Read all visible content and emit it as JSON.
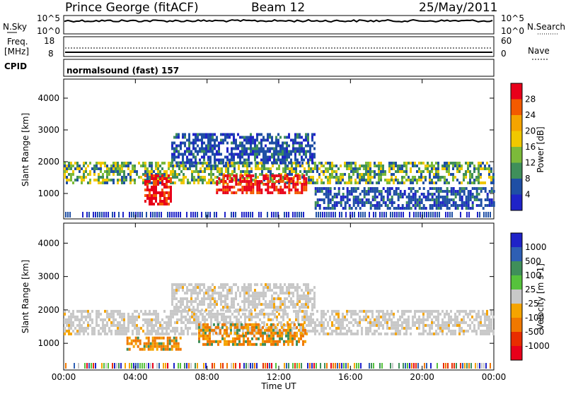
{
  "header": {
    "station": "Prince George (fitACF)",
    "beam": "Beam 12",
    "date": "25/May/2011"
  },
  "top_panels": {
    "nsky_label": "N.Sky",
    "nsearch_label": "N.Search",
    "noise_ticks_left": [
      "10^5",
      "10^0"
    ],
    "noise_ticks_right": [
      "10^5",
      "10^0"
    ],
    "freq_label_1": "Freq.",
    "freq_label_2": "[MHz]",
    "freq_ticks": [
      "18",
      "8"
    ],
    "nave_label": "Nave",
    "nave_ticks": [
      "60",
      "0"
    ],
    "cpid_label": "CPID",
    "cpid_value": "normalsound (fast) 157"
  },
  "chart_data": [
    {
      "type": "heatmap",
      "name": "power",
      "ylabel": "Slant Range [km]",
      "ylim": [
        200,
        4600
      ],
      "yticks": [
        1000,
        2000,
        3000,
        4000
      ],
      "xlabel": "Time UT",
      "xlim": [
        0,
        24
      ],
      "xticks": [
        "00:00",
        "04:00",
        "08:00",
        "12:00",
        "16:00",
        "20:00",
        "00:00"
      ],
      "colorbar": {
        "label": "Power [dB]",
        "ticks": [
          "28",
          "24",
          "20",
          "16",
          "12",
          "8",
          "4"
        ],
        "colors": [
          "#e8001a",
          "#f35a00",
          "#f5a400",
          "#f0c800",
          "#7cba3a",
          "#3f8f5a",
          "#1f4fa5",
          "#1f23c8"
        ]
      },
      "features": [
        {
          "band": "main",
          "t_start": 0.0,
          "t_end": 24.0,
          "range_km": [
            1300,
            2000
          ],
          "power_db": 12
        },
        {
          "band": "strong_patch",
          "t_start": 4.5,
          "t_end": 6.0,
          "range_km": [
            700,
            1600
          ],
          "power_db": 28
        },
        {
          "band": "strong_patch",
          "t_start": 8.5,
          "t_end": 13.5,
          "range_km": [
            1000,
            1600
          ],
          "power_db": 28
        },
        {
          "band": "arc",
          "t_start": 6.0,
          "t_end": 14.0,
          "range_km": [
            2000,
            2900
          ],
          "power_db": 8
        },
        {
          "band": "lower",
          "t_start": 14.0,
          "t_end": 24.0,
          "range_km": [
            500,
            1200
          ],
          "power_db": 10
        }
      ]
    },
    {
      "type": "heatmap",
      "name": "velocity",
      "ylabel": "Slant Range [km]",
      "ylim": [
        200,
        4600
      ],
      "yticks": [
        1000,
        2000,
        3000,
        4000
      ],
      "xlabel": "Time UT",
      "xlim": [
        0,
        24
      ],
      "xticks": [
        "00:00",
        "04:00",
        "08:00",
        "12:00",
        "16:00",
        "20:00",
        "00:00"
      ],
      "colorbar": {
        "label": "Velocity [m s-1]",
        "ticks": [
          "1000",
          "500",
          "100",
          "25",
          "-25",
          "-100",
          "-500",
          "-1000"
        ],
        "colors": [
          "#1f23c8",
          "#2e5fb4",
          "#3f8f5a",
          "#56c23c",
          "#c8c8c8",
          "#f5a400",
          "#f07800",
          "#e82d00",
          "#e8001a"
        ]
      },
      "features": [
        {
          "band": "ground_scatter",
          "t_start": 0.0,
          "t_end": 24.0,
          "range_km": [
            1300,
            2000
          ],
          "velocity": 0
        },
        {
          "band": "flow_patch",
          "t_start": 7.5,
          "t_end": 13.5,
          "range_km": [
            1000,
            1600
          ],
          "velocity": -100
        },
        {
          "band": "flow_patch",
          "t_start": 3.5,
          "t_end": 6.5,
          "range_km": [
            800,
            1200
          ],
          "velocity": -100
        },
        {
          "band": "arc",
          "t_start": 6.0,
          "t_end": 14.0,
          "range_km": [
            2000,
            2800
          ],
          "velocity": 0
        }
      ]
    }
  ]
}
